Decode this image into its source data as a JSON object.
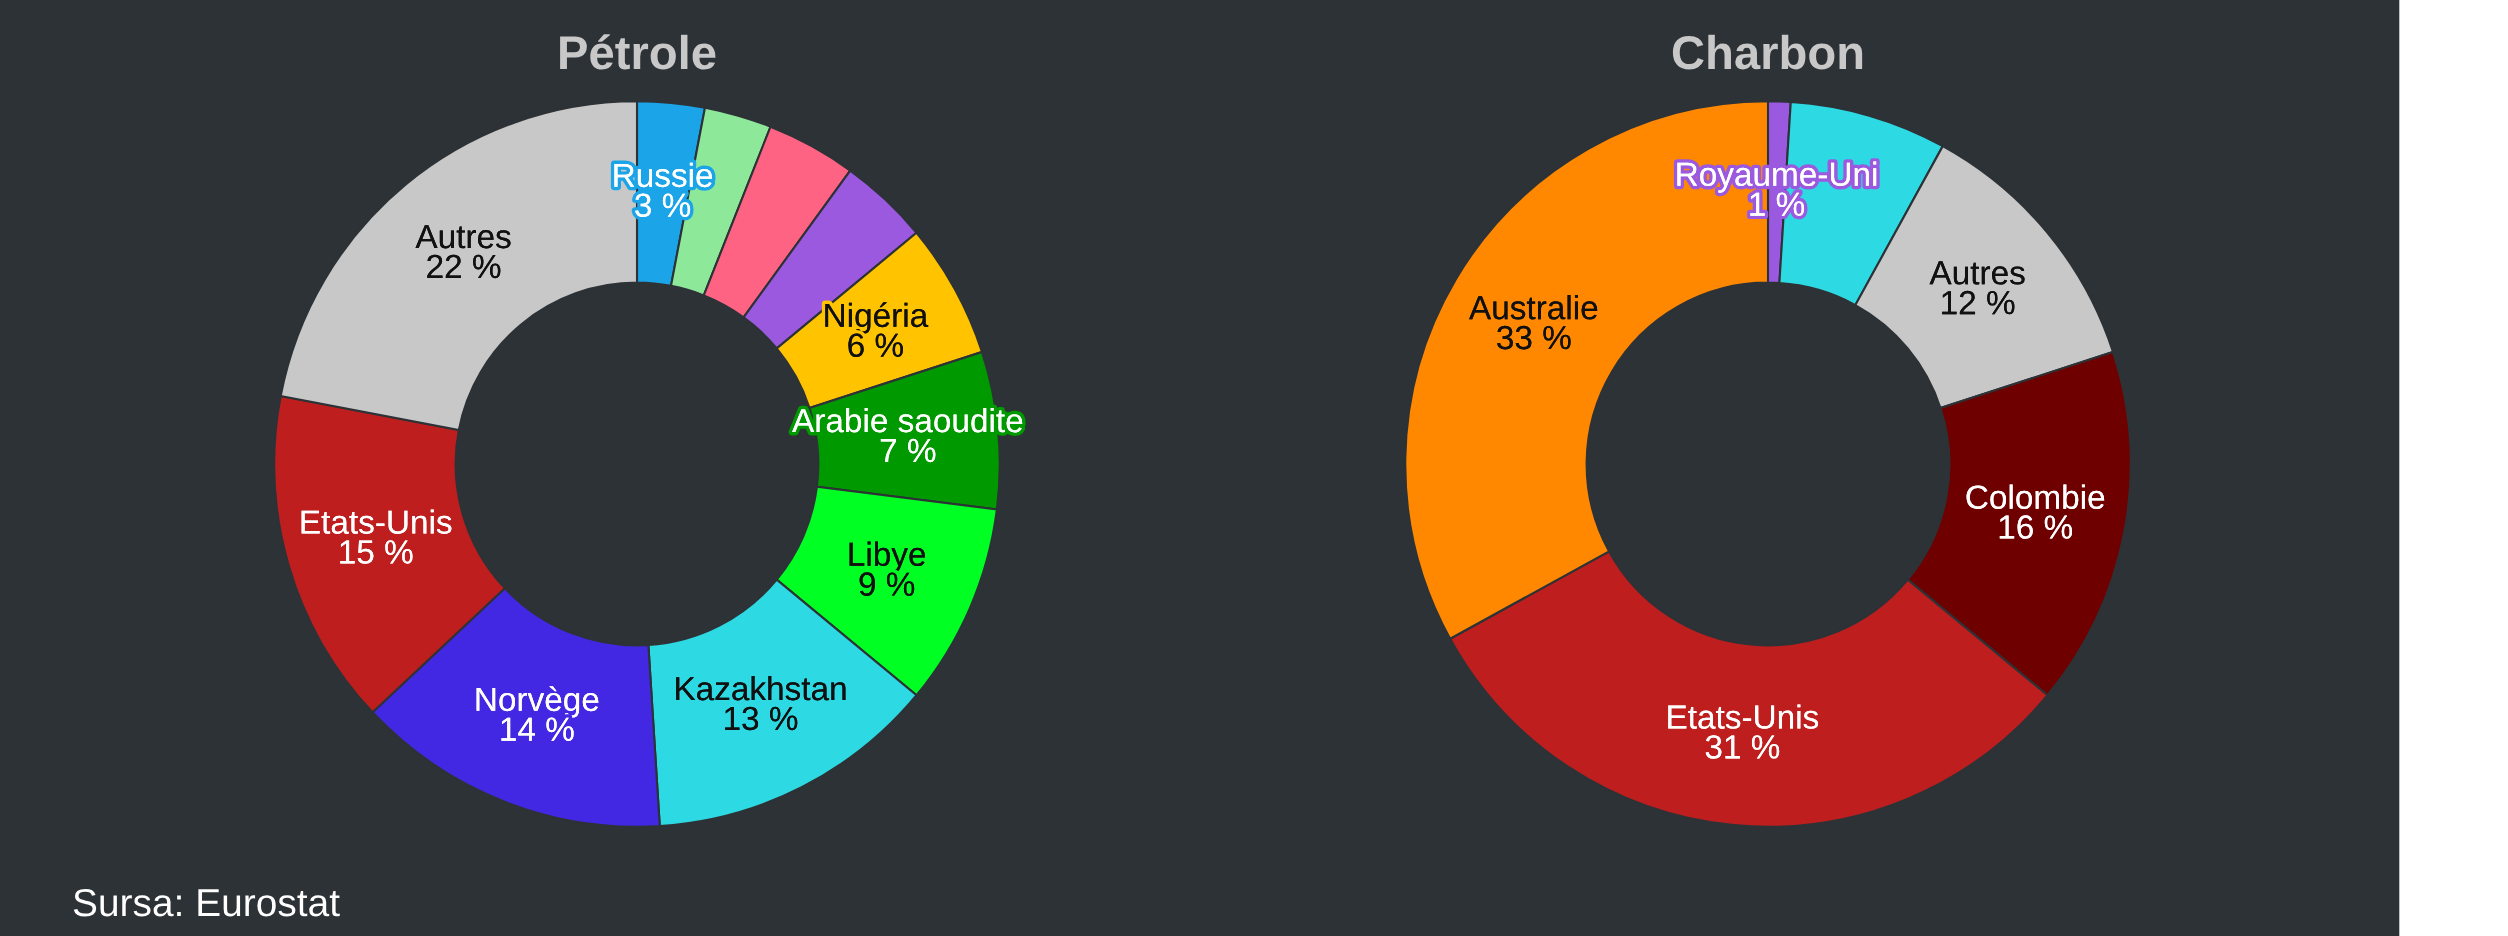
{
  "chart_data": [
    {
      "type": "donut",
      "title": "Pétrole",
      "categories": [
        "Russie",
        null,
        null,
        null,
        "Nigéria",
        "Arabie saoudite",
        "Libye",
        "Kazakhstan",
        "Norvège",
        "Etats-Unis",
        "Autres"
      ],
      "values": [
        3,
        3,
        4,
        4,
        6,
        7,
        9,
        13,
        14,
        15,
        22
      ],
      "colors": [
        "#1ba5e8",
        "#8ee89a",
        "#ff6384",
        "#9b59e0",
        "#ffc300",
        "#009900",
        "#00ff22",
        "#2dd9e3",
        "#4227e3",
        "#bf1e1e",
        "#c8c8c8"
      ],
      "value_labels": [
        "3 %",
        null,
        null,
        null,
        "6 %",
        "7 %",
        "9 %",
        "13 %",
        "14 %",
        "15 %",
        "22 %"
      ],
      "annotations": [
        "Sursa: Eurostat"
      ]
    },
    {
      "type": "donut",
      "title": "Charbon",
      "categories": [
        "Royaume-Uni",
        null,
        "Autres",
        "Colombie",
        "Etats-Unis",
        "Australie"
      ],
      "values": [
        1,
        7,
        12,
        16,
        31,
        33
      ],
      "colors": [
        "#9b59e0",
        "#2dd9e3",
        "#c8c8c8",
        "#6e0000",
        "#bf1e1e",
        "#ff8800"
      ],
      "value_labels": [
        "1 %",
        null,
        "12 %",
        "16 %",
        "31 %",
        "33 %"
      ]
    }
  ]
}
